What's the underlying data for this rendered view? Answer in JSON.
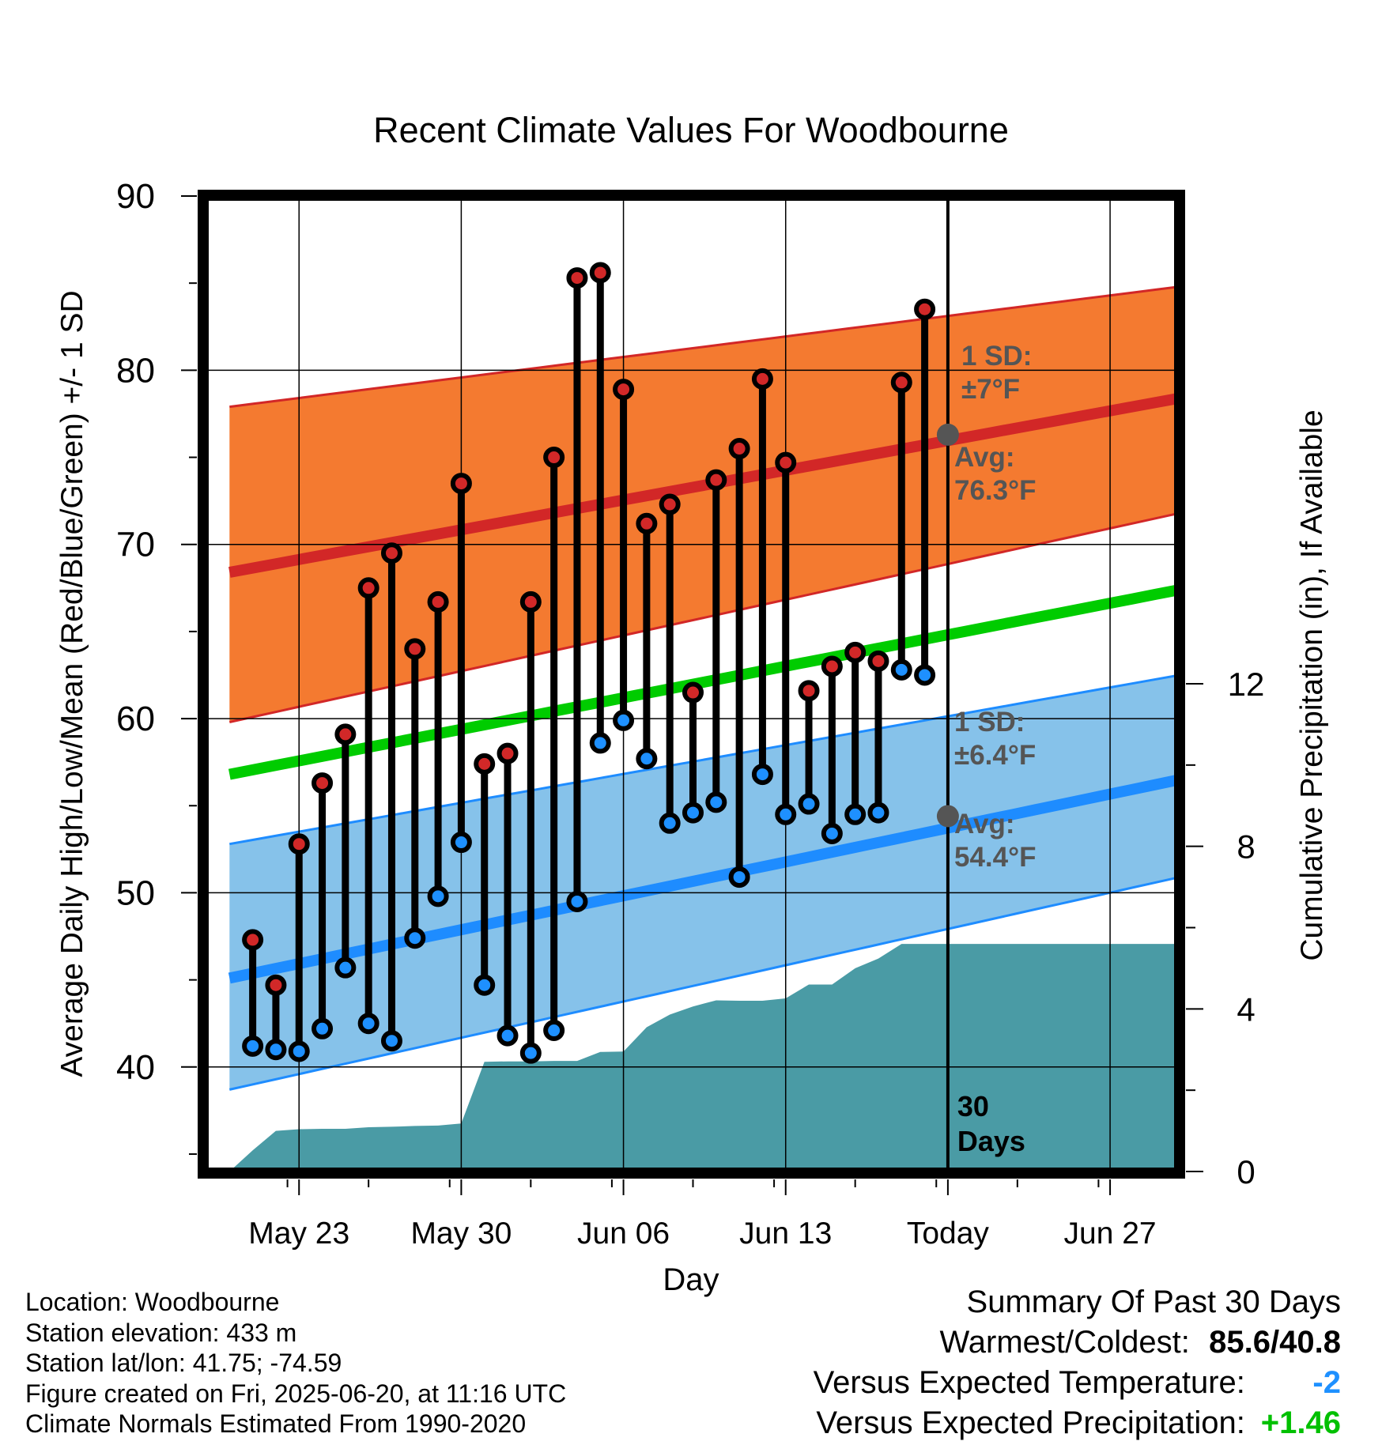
{
  "chart_data": {
    "type": "line",
    "title": "Recent Climate Values For Woodbourne",
    "xlabel": "Day",
    "ylabel": "Average Daily High/Low/Mean (Red/Blue/Green) +/- 1 SD",
    "y2label": "Cumulative Precipitation (in), If Available",
    "ylim": [
      34,
      90
    ],
    "y2lim": [
      0,
      24
    ],
    "yticks": [
      40,
      50,
      60,
      70,
      80,
      90
    ],
    "y2ticks": [
      0,
      4,
      8,
      12
    ],
    "xlim": [
      "2025-05-19",
      "2025-06-30"
    ],
    "xticks": [
      {
        "date": "2025-05-23",
        "label": "May 23"
      },
      {
        "date": "2025-05-30",
        "label": "May 30"
      },
      {
        "date": "2025-06-06",
        "label": "Jun 06"
      },
      {
        "date": "2025-06-13",
        "label": "Jun 13"
      },
      {
        "date": "2025-06-20",
        "label": "Today"
      },
      {
        "date": "2025-06-27",
        "label": "Jun 27"
      }
    ],
    "grid": true,
    "today": "2025-06-20",
    "today_label": "30 Days",
    "daily": {
      "dates": [
        "2025-05-21",
        "2025-05-22",
        "2025-05-23",
        "2025-05-24",
        "2025-05-25",
        "2025-05-26",
        "2025-05-27",
        "2025-05-28",
        "2025-05-29",
        "2025-05-30",
        "2025-05-31",
        "2025-06-01",
        "2025-06-02",
        "2025-06-03",
        "2025-06-04",
        "2025-06-05",
        "2025-06-06",
        "2025-06-07",
        "2025-06-08",
        "2025-06-09",
        "2025-06-10",
        "2025-06-11",
        "2025-06-12",
        "2025-06-13",
        "2025-06-14",
        "2025-06-15",
        "2025-06-16",
        "2025-06-17",
        "2025-06-18",
        "2025-06-19"
      ],
      "high": [
        47.3,
        44.7,
        52.8,
        56.3,
        59.1,
        67.5,
        69.5,
        64.0,
        66.7,
        73.5,
        57.4,
        58.0,
        66.7,
        75.0,
        85.3,
        85.6,
        78.9,
        71.2,
        72.3,
        61.5,
        73.7,
        75.5,
        79.5,
        74.7,
        61.6,
        63.0,
        63.8,
        63.3,
        79.3,
        83.5
      ],
      "low": [
        41.2,
        41.0,
        40.9,
        42.2,
        45.7,
        42.5,
        41.5,
        47.4,
        49.8,
        52.9,
        44.7,
        41.8,
        40.8,
        42.1,
        49.5,
        58.6,
        59.9,
        57.7,
        54.0,
        54.6,
        55.2,
        50.9,
        56.8,
        54.5,
        55.1,
        53.4,
        54.5,
        54.6,
        62.8,
        62.5
      ]
    },
    "normals": {
      "dates": [
        "2025-05-20",
        "2025-06-30"
      ],
      "high_avg": [
        68.4,
        78.4
      ],
      "high_sd_upper": [
        77.9,
        84.8
      ],
      "high_sd_lower": [
        59.8,
        71.8
      ],
      "mean_avg": [
        56.8,
        67.4
      ],
      "low_avg": [
        45.1,
        56.5
      ],
      "low_sd_upper": [
        52.8,
        62.5
      ],
      "low_sd_lower": [
        38.7,
        50.9
      ]
    },
    "precip": {
      "dates": [
        "2025-05-20",
        "2025-05-21",
        "2025-05-22",
        "2025-05-23",
        "2025-05-24",
        "2025-05-25",
        "2025-05-26",
        "2025-05-27",
        "2025-05-28",
        "2025-05-29",
        "2025-05-30",
        "2025-05-31",
        "2025-06-01",
        "2025-06-02",
        "2025-06-03",
        "2025-06-04",
        "2025-06-05",
        "2025-06-06",
        "2025-06-07",
        "2025-06-08",
        "2025-06-09",
        "2025-06-10",
        "2025-06-11",
        "2025-06-12",
        "2025-06-13",
        "2025-06-14",
        "2025-06-15",
        "2025-06-16",
        "2025-06-17",
        "2025-06-18",
        "2025-06-19",
        "2025-06-20",
        "2025-06-30"
      ],
      "values": [
        0,
        0.52,
        1.0,
        1.04,
        1.05,
        1.05,
        1.09,
        1.1,
        1.12,
        1.13,
        1.18,
        2.7,
        2.71,
        2.71,
        2.72,
        2.72,
        2.94,
        2.95,
        3.55,
        3.86,
        4.06,
        4.21,
        4.2,
        4.2,
        4.26,
        4.6,
        4.6,
        5.0,
        5.24,
        5.6,
        5.6,
        5.6,
        5.6
      ]
    },
    "annotations": {
      "high_sd": {
        "line1": "1 SD:",
        "line2": "±7°F"
      },
      "high_avg": {
        "label": "Avg:",
        "value": "76.3°F",
        "y": 76.3
      },
      "low_sd": {
        "line1": "1 SD:",
        "line2": "±6.4°F"
      },
      "low_avg": {
        "label": "Avg:",
        "value": "54.4°F",
        "y": 54.4
      }
    },
    "colors": {
      "high_band": "#F47A30",
      "high_line": "#D22727",
      "mean_line": "#00CC00",
      "low_band": "#86C2EA",
      "low_line": "#1E8CFF",
      "precip": "#4A9BA5",
      "high_dot": "#D22828",
      "low_dot": "#1E90FF",
      "avg_marker": "#555555",
      "annotation_text": "#555555"
    }
  },
  "info": {
    "location": "Location: Woodbourne",
    "elevation": "Station elevation: 433 m",
    "latlon": "Station lat/lon: 41.75; -74.59",
    "created": "Figure created on Fri, 2025-06-20, at 11:16 UTC",
    "normals": "Climate Normals Estimated From 1990-2020"
  },
  "summary": {
    "title": "Summary Of Past 30 Days",
    "warmest_label": "Warmest/Coldest:",
    "warmest_value": "85.6/40.8",
    "temp_label": "Versus Expected Temperature:",
    "temp_value": "-2",
    "precip_label": "Versus Expected Precipitation:",
    "precip_value": "+1.46"
  }
}
